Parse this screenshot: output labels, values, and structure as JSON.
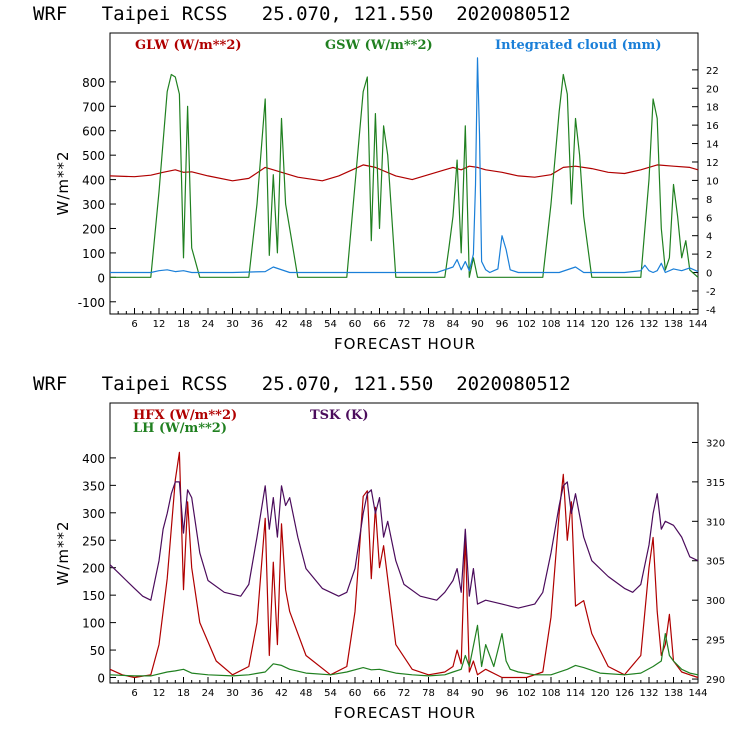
{
  "chart_data": [
    {
      "type": "line",
      "title": "WRF   Taipei RCSS   25.070, 121.550  2020080512",
      "xlabel": "FORECAST HOUR",
      "ylabel": "W/m**2",
      "xlim": [
        0,
        144
      ],
      "ylim": [
        -150,
        1000
      ],
      "y2lim": [
        -4.5,
        26
      ],
      "xticks": [
        6,
        12,
        18,
        24,
        30,
        36,
        42,
        48,
        54,
        60,
        66,
        72,
        78,
        84,
        90,
        96,
        102,
        108,
        114,
        120,
        126,
        132,
        138,
        144
      ],
      "yticks": [
        -100,
        0,
        100,
        200,
        300,
        400,
        500,
        600,
        700,
        800
      ],
      "y2ticks": [
        -4,
        -2,
        0,
        2,
        4,
        6,
        8,
        10,
        12,
        14,
        16,
        18,
        20,
        22
      ],
      "legend": [
        "GLW (W/m**2)",
        "GSW (W/m**2)",
        "Integrated cloud (mm)"
      ],
      "series": [
        {
          "name": "GLW (W/m**2)",
          "axis": "left",
          "color": "#b00000",
          "x": [
            0,
            6,
            10,
            13,
            16,
            18,
            20,
            24,
            30,
            34,
            38,
            40,
            42,
            46,
            52,
            56,
            62,
            65,
            70,
            74,
            78,
            82,
            84,
            86,
            88,
            90,
            92,
            96,
            100,
            104,
            108,
            111,
            114,
            118,
            122,
            126,
            130,
            134,
            138,
            142,
            144
          ],
          "y": [
            415,
            412,
            418,
            430,
            440,
            430,
            432,
            415,
            395,
            405,
            450,
            440,
            430,
            410,
            395,
            415,
            460,
            450,
            415,
            400,
            420,
            440,
            450,
            440,
            455,
            450,
            440,
            430,
            415,
            410,
            420,
            450,
            455,
            445,
            430,
            425,
            440,
            460,
            455,
            450,
            440
          ]
        },
        {
          "name": "GSW (W/m**2)",
          "axis": "left",
          "color": "#208020",
          "x": [
            0,
            10,
            12,
            14,
            15,
            16,
            17,
            18,
            19,
            20,
            22,
            25,
            34,
            36,
            38,
            39,
            40,
            41,
            42,
            43,
            44,
            46,
            48,
            58,
            60,
            62,
            63,
            64,
            65,
            66,
            67,
            68,
            70,
            72,
            82,
            83,
            84,
            85,
            86,
            87,
            88,
            89,
            90,
            91,
            92,
            106,
            108,
            110,
            111,
            112,
            113,
            114,
            115,
            116,
            118,
            120,
            130,
            132,
            133,
            134,
            135,
            136,
            137,
            138,
            139,
            140,
            141,
            142,
            144
          ],
          "y": [
            0,
            0,
            350,
            760,
            830,
            820,
            750,
            80,
            700,
            120,
            0,
            0,
            0,
            300,
            730,
            90,
            420,
            100,
            650,
            300,
            200,
            0,
            0,
            0,
            380,
            760,
            820,
            150,
            670,
            200,
            620,
            500,
            0,
            0,
            0,
            120,
            250,
            480,
            100,
            620,
            0,
            80,
            0,
            0,
            0,
            0,
            300,
            680,
            830,
            750,
            300,
            650,
            500,
            250,
            0,
            0,
            0,
            400,
            730,
            650,
            200,
            30,
            80,
            380,
            250,
            80,
            150,
            30,
            0
          ]
        },
        {
          "name": "Integrated cloud (mm)",
          "axis": "right",
          "color": "#1a7fd8",
          "x": [
            0,
            10,
            12,
            14,
            16,
            18,
            20,
            30,
            38,
            40,
            44,
            60,
            80,
            82,
            84,
            85,
            86,
            87,
            88,
            89,
            89.5,
            90,
            90.5,
            91,
            92,
            93,
            94,
            95,
            96,
            97,
            98,
            100,
            110,
            114,
            116,
            126,
            130,
            131,
            132,
            133,
            134,
            135,
            136,
            138,
            140,
            142,
            144
          ],
          "y": [
            0,
            0,
            0.2,
            0.3,
            0.1,
            0.2,
            0,
            0,
            0.1,
            0.6,
            0,
            0,
            0,
            0.3,
            0.6,
            1.4,
            0.3,
            1.2,
            0.2,
            2.0,
            9.5,
            23.3,
            15,
            1.2,
            0.3,
            0,
            0.2,
            0.4,
            4.0,
            2.5,
            0.3,
            0,
            0,
            0.6,
            0,
            0,
            0.2,
            0.8,
            0.2,
            0,
            0.2,
            1.0,
            0,
            0.4,
            0.2,
            0.5,
            0.1
          ]
        }
      ]
    },
    {
      "type": "line",
      "title": "WRF   Taipei RCSS   25.070, 121.550  2020080512",
      "xlabel": "FORECAST HOUR",
      "ylabel": "W/m**2",
      "xlim": [
        0,
        144
      ],
      "ylim": [
        -10,
        500
      ],
      "y2lim": [
        289.5,
        325
      ],
      "xticks": [
        6,
        12,
        18,
        24,
        30,
        36,
        42,
        48,
        54,
        60,
        66,
        72,
        78,
        84,
        90,
        96,
        102,
        108,
        114,
        120,
        126,
        132,
        138,
        144
      ],
      "yticks": [
        0,
        50,
        100,
        150,
        200,
        250,
        300,
        350,
        400
      ],
      "y2ticks": [
        290,
        295,
        300,
        305,
        310,
        315,
        320
      ],
      "legend": [
        "HFX (W/m**2)",
        "LH  (W/m**2)",
        "TSK (K)"
      ],
      "series": [
        {
          "name": "HFX (W/m**2)",
          "axis": "left",
          "color": "#b00000",
          "x": [
            0,
            3,
            6,
            10,
            12,
            14,
            16,
            17,
            18,
            19,
            20,
            22,
            26,
            30,
            34,
            36,
            38,
            39,
            40,
            41,
            42,
            43,
            44,
            48,
            54,
            58,
            60,
            62,
            63,
            64,
            65,
            66,
            67,
            68,
            70,
            74,
            78,
            82,
            84,
            85,
            86,
            87,
            88,
            89,
            90,
            92,
            96,
            102,
            106,
            108,
            110,
            111,
            112,
            113,
            114,
            116,
            118,
            122,
            126,
            130,
            132,
            133,
            134,
            135,
            136,
            137,
            138,
            140,
            142,
            144
          ],
          "y": [
            15,
            5,
            0,
            5,
            60,
            180,
            360,
            410,
            160,
            320,
            200,
            100,
            30,
            5,
            20,
            100,
            290,
            40,
            210,
            60,
            280,
            160,
            120,
            40,
            5,
            20,
            120,
            330,
            340,
            180,
            310,
            200,
            240,
            180,
            60,
            15,
            5,
            10,
            20,
            50,
            25,
            260,
            10,
            30,
            5,
            15,
            0,
            0,
            10,
            110,
            300,
            370,
            250,
            320,
            130,
            140,
            80,
            20,
            5,
            40,
            200,
            255,
            120,
            40,
            60,
            115,
            30,
            10,
            5,
            0
          ]
        },
        {
          "name": "LH  (W/m**2)",
          "axis": "left",
          "color": "#208020",
          "x": [
            0,
            6,
            10,
            14,
            16,
            18,
            20,
            24,
            30,
            34,
            38,
            40,
            42,
            44,
            48,
            54,
            58,
            62,
            64,
            66,
            70,
            74,
            78,
            82,
            84,
            86,
            87,
            88,
            90,
            91,
            92,
            94,
            96,
            97,
            98,
            100,
            104,
            108,
            112,
            114,
            116,
            120,
            126,
            130,
            133,
            135,
            136,
            137,
            138,
            140,
            142,
            144
          ],
          "y": [
            5,
            3,
            3,
            10,
            12,
            15,
            8,
            5,
            3,
            5,
            10,
            25,
            22,
            15,
            8,
            5,
            10,
            18,
            14,
            15,
            8,
            5,
            3,
            5,
            10,
            15,
            40,
            20,
            95,
            20,
            60,
            20,
            80,
            30,
            15,
            10,
            5,
            5,
            15,
            22,
            18,
            8,
            5,
            8,
            20,
            30,
            80,
            40,
            30,
            15,
            8,
            5
          ]
        },
        {
          "name": "TSK (K)",
          "axis": "right",
          "color": "#4b0c5c",
          "x": [
            0,
            2,
            4,
            6,
            8,
            10,
            12,
            13,
            14,
            15,
            16,
            17,
            18,
            19,
            20,
            22,
            24,
            28,
            32,
            34,
            36,
            38,
            39,
            40,
            41,
            42,
            43,
            44,
            46,
            48,
            52,
            56,
            58,
            60,
            62,
            63,
            64,
            65,
            66,
            67,
            68,
            70,
            72,
            76,
            80,
            82,
            84,
            85,
            86,
            87,
            88,
            89,
            90,
            92,
            96,
            100,
            104,
            106,
            108,
            110,
            111,
            112,
            113,
            114,
            116,
            118,
            122,
            126,
            128,
            130,
            132,
            133,
            134,
            135,
            136,
            138,
            140,
            142,
            144
          ],
          "y": [
            304.5,
            303.5,
            302.5,
            301.5,
            300.5,
            300,
            305,
            309,
            311,
            313.5,
            315,
            315,
            308.5,
            314,
            313,
            306,
            302.5,
            301,
            300.5,
            302,
            308,
            314.5,
            309,
            313,
            308,
            314.5,
            312,
            313,
            308,
            304,
            301.5,
            300.5,
            301,
            304,
            311,
            313.5,
            314,
            311,
            313,
            308,
            310,
            305,
            302,
            300.5,
            300,
            301,
            302.5,
            304,
            301,
            309,
            300.5,
            304,
            299.5,
            300,
            299.5,
            299,
            299.5,
            301,
            306,
            312,
            314.5,
            315,
            311,
            313.5,
            308,
            305,
            303,
            301.5,
            301,
            302,
            307,
            311,
            313.5,
            309,
            310,
            309.5,
            308,
            305.5,
            305
          ]
        }
      ]
    }
  ]
}
